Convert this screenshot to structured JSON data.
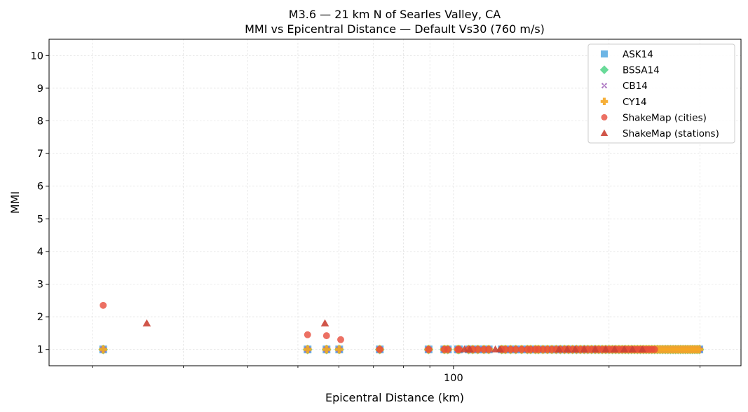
{
  "chart_data": {
    "type": "scatter",
    "title": "M3.6 — 21 km N of Searles Valley, CA",
    "subtitle": "MMI vs Epicentral Distance — Default Vs30 (760 m/s)",
    "xlabel": "Epicentral Distance (km)",
    "ylabel": "MMI",
    "x_scale": "log",
    "xlim": [
      16.5,
      360
    ],
    "ylim": [
      0.5,
      10.5
    ],
    "x_ticks_major": [
      {
        "value": 100,
        "label": "100"
      }
    ],
    "x_ticks_minor": [
      20,
      30,
      40,
      50,
      60,
      70,
      80,
      90,
      200,
      300
    ],
    "y_ticks": [
      {
        "value": 1,
        "label": "1"
      },
      {
        "value": 2,
        "label": "2"
      },
      {
        "value": 3,
        "label": "3"
      },
      {
        "value": 4,
        "label": "4"
      },
      {
        "value": 5,
        "label": "5"
      },
      {
        "value": 6,
        "label": "6"
      },
      {
        "value": 7,
        "label": "7"
      },
      {
        "value": 8,
        "label": "8"
      },
      {
        "value": 9,
        "label": "9"
      },
      {
        "value": 10,
        "label": "10"
      }
    ],
    "grid": true,
    "legend_position": "top-right",
    "series": [
      {
        "name": "ASK14",
        "marker": "square",
        "color": "#5dade2",
        "x": [
          21,
          52.2,
          56.8,
          60.1,
          72,
          89.5,
          96,
          97.5,
          102,
          102.5,
          107,
          109,
          111.5,
          114.5,
          117,
          124,
          126,
          129,
          132,
          135.5,
          139,
          141,
          144,
          146,
          149,
          152,
          155,
          158,
          161,
          164,
          167,
          170,
          173,
          176,
          179,
          182,
          185,
          188,
          191,
          194,
          197,
          200,
          203,
          206,
          209,
          212,
          215,
          218,
          221,
          224,
          227,
          230,
          233,
          236,
          239,
          242,
          245,
          248,
          251,
          254,
          257,
          260,
          263,
          266,
          269,
          272,
          275,
          278,
          281,
          284,
          287,
          290,
          293,
          296,
          299
        ],
        "y": [
          1,
          1,
          1,
          1,
          1,
          1,
          1,
          1,
          1,
          1,
          1,
          1,
          1,
          1,
          1,
          1,
          1,
          1,
          1,
          1,
          1,
          1,
          1,
          1,
          1,
          1,
          1,
          1,
          1,
          1,
          1,
          1,
          1,
          1,
          1,
          1,
          1,
          1,
          1,
          1,
          1,
          1,
          1,
          1,
          1,
          1,
          1,
          1,
          1,
          1,
          1,
          1,
          1,
          1,
          1,
          1,
          1,
          1,
          1,
          1,
          1,
          1,
          1,
          1,
          1,
          1,
          1,
          1,
          1,
          1,
          1,
          1,
          1,
          1,
          1
        ]
      },
      {
        "name": "BSSA14",
        "marker": "diamond",
        "color": "#58d68d",
        "x": [
          21,
          52.2,
          56.8,
          60.1,
          72,
          89.5,
          96,
          97.5,
          102,
          102.5,
          107,
          109,
          111.5,
          114.5,
          117,
          124,
          126,
          129,
          132,
          135.5,
          139,
          141,
          144,
          146,
          149,
          152,
          155,
          158,
          161,
          164,
          167,
          170,
          173,
          176,
          179,
          182,
          185,
          188,
          191,
          194,
          197,
          200,
          203,
          206,
          209,
          212,
          215,
          218,
          221,
          224,
          227,
          230,
          233,
          236,
          239,
          242,
          245,
          248,
          251,
          254,
          257,
          260,
          263,
          266,
          269,
          272,
          275,
          278,
          281,
          284,
          287,
          290,
          293,
          296,
          299
        ],
        "y": [
          1,
          1,
          1,
          1,
          1,
          1,
          1,
          1,
          1,
          1,
          1,
          1,
          1,
          1,
          1,
          1,
          1,
          1,
          1,
          1,
          1,
          1,
          1,
          1,
          1,
          1,
          1,
          1,
          1,
          1,
          1,
          1,
          1,
          1,
          1,
          1,
          1,
          1,
          1,
          1,
          1,
          1,
          1,
          1,
          1,
          1,
          1,
          1,
          1,
          1,
          1,
          1,
          1,
          1,
          1,
          1,
          1,
          1,
          1,
          1,
          1,
          1,
          1,
          1,
          1,
          1,
          1,
          1,
          1,
          1,
          1,
          1,
          1,
          1,
          1
        ]
      },
      {
        "name": "CB14",
        "marker": "x",
        "color": "#a569bd",
        "x": [
          21,
          52.2,
          56.8,
          60.1,
          72,
          89.5,
          96,
          97.5,
          102,
          102.5,
          107,
          109,
          111.5,
          114.5,
          117,
          124,
          126,
          129,
          132,
          135.5,
          139,
          141,
          144,
          146,
          149,
          152,
          155,
          158,
          161,
          164,
          167,
          170,
          173,
          176,
          179,
          182,
          185,
          188,
          191,
          194,
          197,
          200,
          203,
          206,
          209,
          212,
          215,
          218,
          221,
          224,
          227,
          230,
          233,
          236,
          239,
          242,
          245,
          248,
          251,
          254,
          257,
          260,
          263,
          266,
          269,
          272,
          275,
          278,
          281,
          284,
          287,
          290,
          293,
          296,
          299
        ],
        "y": [
          1,
          1,
          1,
          1,
          1,
          1,
          1,
          1,
          1,
          1,
          1,
          1,
          1,
          1,
          1,
          1,
          1,
          1,
          1,
          1,
          1,
          1,
          1,
          1,
          1,
          1,
          1,
          1,
          1,
          1,
          1,
          1,
          1,
          1,
          1,
          1,
          1,
          1,
          1,
          1,
          1,
          1,
          1,
          1,
          1,
          1,
          1,
          1,
          1,
          1,
          1,
          1,
          1,
          1,
          1,
          1,
          1,
          1,
          1,
          1,
          1,
          1,
          1,
          1,
          1,
          1,
          1,
          1,
          1,
          1,
          1,
          1,
          1,
          1,
          1
        ]
      },
      {
        "name": "CY14",
        "marker": "plus",
        "color": "#f5a623",
        "x": [
          21,
          52.2,
          56.8,
          60.1,
          72,
          89.5,
          96,
          97.5,
          102,
          102.5,
          107,
          109,
          111.5,
          114.5,
          117,
          124,
          126,
          129,
          132,
          135.5,
          139,
          141,
          144,
          146,
          149,
          152,
          155,
          158,
          161,
          164,
          167,
          170,
          173,
          176,
          179,
          182,
          185,
          188,
          191,
          194,
          197,
          200,
          203,
          206,
          209,
          212,
          215,
          218,
          221,
          224,
          227,
          230,
          233,
          236,
          239,
          242,
          245,
          248,
          251,
          254,
          257,
          260,
          263,
          266,
          269,
          272,
          275,
          278,
          281,
          284,
          287,
          290,
          293,
          296,
          299
        ],
        "y": [
          1,
          1,
          1,
          1,
          1,
          1,
          1,
          1,
          1,
          1,
          1,
          1,
          1,
          1,
          1,
          1,
          1,
          1,
          1,
          1,
          1,
          1,
          1,
          1,
          1,
          1,
          1,
          1,
          1,
          1,
          1,
          1,
          1,
          1,
          1,
          1,
          1,
          1,
          1,
          1,
          1,
          1,
          1,
          1,
          1,
          1,
          1,
          1,
          1,
          1,
          1,
          1,
          1,
          1,
          1,
          1,
          1,
          1,
          1,
          1,
          1,
          1,
          1,
          1,
          1,
          1,
          1,
          1,
          1,
          1,
          1,
          1,
          1,
          1,
          1
        ]
      },
      {
        "name": "ShakeMap (cities)",
        "marker": "circle",
        "color": "#e74c3c",
        "x": [
          21,
          52.2,
          56.8,
          60.5,
          72,
          89.5,
          96,
          97.5,
          102,
          102.5,
          107,
          109,
          111.5,
          114.5,
          117,
          124,
          126,
          129,
          132,
          135.5,
          139,
          141,
          144,
          146,
          149,
          152,
          155,
          158,
          161,
          164,
          167,
          170,
          173,
          176,
          179,
          182,
          185,
          188,
          191,
          194,
          197,
          200,
          203,
          206,
          209,
          212,
          215,
          218,
          221,
          224,
          227,
          230,
          233,
          236,
          239,
          242,
          245
        ],
        "y": [
          2.35,
          1.45,
          1.42,
          1.3,
          1,
          1,
          1,
          1,
          1,
          1,
          1,
          1,
          1,
          1,
          1,
          1,
          1,
          1,
          1,
          1,
          1,
          1,
          1,
          1,
          1,
          1,
          1,
          1,
          1,
          1,
          1,
          1,
          1,
          1,
          1,
          1,
          1,
          1,
          1,
          1,
          1,
          1,
          1,
          1,
          1,
          1,
          1,
          1,
          1,
          1,
          1,
          1,
          1,
          1,
          1,
          1,
          1
        ]
      },
      {
        "name": "ShakeMap (stations)",
        "marker": "triangle",
        "color": "#cb4335",
        "x": [
          25.5,
          56.4,
          105,
          107.5,
          120.5,
          123,
          160,
          166,
          172,
          179,
          188,
          197,
          205,
          214,
          222,
          232
        ],
        "y": [
          1.8,
          1.8,
          1,
          1,
          1,
          1,
          1,
          1,
          1,
          1,
          1,
          1,
          1,
          1,
          1,
          1
        ]
      }
    ]
  }
}
